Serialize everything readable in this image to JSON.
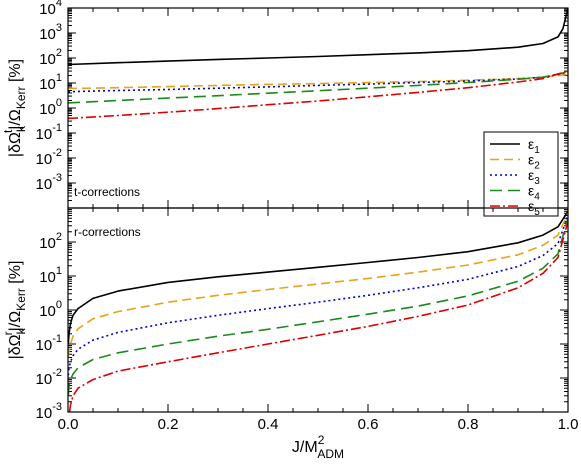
{
  "chart_data": [
    {
      "type": "line",
      "panel": "top",
      "annotation": "t-corrections",
      "ylabel_html": "|δΩ_k^t|/Ω_Kerr [%]",
      "ylabel": {
        "main": "|δΩ",
        "sub": "k",
        "sup": "t",
        "mid": "|/Ω",
        "sub2": "Kerr",
        "tail": " [%]"
      },
      "yscale": "log",
      "ylim": [
        0.0001,
        10000
      ],
      "xlim": [
        0,
        1
      ],
      "yticks": [
        {
          "v": 0.001,
          "base": "10",
          "exp": "-3"
        },
        {
          "v": 0.01,
          "base": "10",
          "exp": "-2"
        },
        {
          "v": 0.1,
          "base": "10",
          "exp": "-1"
        },
        {
          "v": 1,
          "base": "10",
          "exp": "0"
        },
        {
          "v": 10,
          "base": "10",
          "exp": "1"
        },
        {
          "v": 100,
          "base": "10",
          "exp": "2"
        },
        {
          "v": 1000,
          "base": "10",
          "exp": "3"
        },
        {
          "v": 10000,
          "base": "10",
          "exp": "4"
        }
      ],
      "series": [
        {
          "name": "ε1",
          "color": "#000000",
          "dash": "",
          "x": [
            0,
            0.1,
            0.2,
            0.3,
            0.4,
            0.5,
            0.6,
            0.7,
            0.8,
            0.9,
            0.95,
            0.98,
            0.99,
            1.0
          ],
          "y": [
            55,
            65,
            75,
            88,
            100,
            115,
            135,
            160,
            195,
            270,
            380,
            700,
            1500,
            10000
          ]
        },
        {
          "name": "ε2",
          "color": "#e8a317",
          "dash": "9,5",
          "x": [
            0,
            0.1,
            0.2,
            0.3,
            0.4,
            0.5,
            0.6,
            0.7,
            0.8,
            0.9,
            0.95,
            1.0
          ],
          "y": [
            6,
            6.5,
            7.2,
            8,
            8.8,
            9.5,
            10.5,
            11.5,
            13,
            15,
            17,
            22
          ]
        },
        {
          "name": "ε3",
          "color": "#0000cc",
          "dash": "2,3",
          "x": [
            0,
            0.1,
            0.2,
            0.3,
            0.4,
            0.5,
            0.6,
            0.7,
            0.8,
            0.9,
            0.95,
            1.0
          ],
          "y": [
            4.5,
            5,
            5.5,
            6.2,
            7,
            8,
            9,
            10.5,
            12,
            14.5,
            17,
            26
          ]
        },
        {
          "name": "ε4",
          "color": "#1a8a1a",
          "dash": "12,6",
          "x": [
            0,
            0.1,
            0.2,
            0.3,
            0.4,
            0.5,
            0.6,
            0.7,
            0.8,
            0.9,
            0.95,
            1.0
          ],
          "y": [
            1.6,
            2,
            2.5,
            3.1,
            3.9,
            4.9,
            6.2,
            8,
            10.5,
            14,
            17,
            28
          ]
        },
        {
          "name": "ε5",
          "color": "#dd0000",
          "dash": "10,3,2,3",
          "x": [
            0,
            0.1,
            0.2,
            0.3,
            0.4,
            0.5,
            0.6,
            0.7,
            0.8,
            0.9,
            0.95,
            1.0
          ],
          "y": [
            0.38,
            0.5,
            0.68,
            0.95,
            1.35,
            1.9,
            2.8,
            4.2,
            6.5,
            11,
            15,
            30
          ]
        }
      ],
      "legend": {
        "placement": "right",
        "entries": [
          {
            "base": "ε",
            "sub": "1"
          },
          {
            "base": "ε",
            "sub": "2"
          },
          {
            "base": "ε",
            "sub": "3"
          },
          {
            "base": "ε",
            "sub": "4"
          },
          {
            "base": "ε",
            "sub": "5"
          }
        ]
      }
    },
    {
      "type": "line",
      "panel": "bottom",
      "annotation": "r-corrections",
      "ylabel": {
        "main": "|δΩ",
        "sub": "k",
        "sup": "r",
        "mid": "|/Ω",
        "sub2": "Kerr",
        "tail": " [%]"
      },
      "xlabel": {
        "main": "J/M",
        "sup": "2",
        "sub": "ADM"
      },
      "yscale": "log",
      "ylim": [
        0.001,
        1000
      ],
      "xlim": [
        0,
        1
      ],
      "xticks": [
        "0.0",
        "0.2",
        "0.4",
        "0.6",
        "0.8",
        "1.0"
      ],
      "xtick_values": [
        0,
        0.2,
        0.4,
        0.6,
        0.8,
        1.0
      ],
      "yticks": [
        {
          "v": 0.001,
          "base": "10",
          "exp": "-3"
        },
        {
          "v": 0.01,
          "base": "10",
          "exp": "-2"
        },
        {
          "v": 0.1,
          "base": "10",
          "exp": "-1"
        },
        {
          "v": 1,
          "base": "10",
          "exp": "0"
        },
        {
          "v": 10,
          "base": "10",
          "exp": "1"
        },
        {
          "v": 100,
          "base": "10",
          "exp": "2"
        }
      ],
      "series": [
        {
          "name": "ε1",
          "color": "#000000",
          "dash": "",
          "x": [
            0.0005,
            0.002,
            0.005,
            0.01,
            0.02,
            0.05,
            0.1,
            0.2,
            0.3,
            0.4,
            0.5,
            0.6,
            0.7,
            0.8,
            0.9,
            0.95,
            0.98,
            1.0
          ],
          "y": [
            0.1,
            0.2,
            0.4,
            0.7,
            1.1,
            2.2,
            3.6,
            6.5,
            9.5,
            13,
            18,
            25,
            35,
            52,
            95,
            160,
            280,
            800
          ]
        },
        {
          "name": "ε2",
          "color": "#e8a317",
          "dash": "9,5",
          "x": [
            0.0005,
            0.002,
            0.005,
            0.01,
            0.02,
            0.05,
            0.1,
            0.2,
            0.3,
            0.4,
            0.5,
            0.6,
            0.7,
            0.8,
            0.9,
            0.95,
            0.98,
            1.0
          ],
          "y": [
            0.04,
            0.06,
            0.1,
            0.17,
            0.28,
            0.55,
            0.9,
            1.7,
            2.7,
            4,
            5.8,
            8.5,
            13,
            21,
            42,
            80,
            160,
            700
          ]
        },
        {
          "name": "ε3",
          "color": "#0000cc",
          "dash": "2,3",
          "x": [
            0.0005,
            0.002,
            0.005,
            0.01,
            0.02,
            0.05,
            0.1,
            0.2,
            0.3,
            0.4,
            0.5,
            0.6,
            0.7,
            0.8,
            0.9,
            0.95,
            0.98,
            1.0
          ],
          "y": [
            0.012,
            0.02,
            0.03,
            0.045,
            0.07,
            0.13,
            0.22,
            0.42,
            0.7,
            1.1,
            1.7,
            2.7,
            4.5,
            8,
            19,
            40,
            90,
            600
          ]
        },
        {
          "name": "ε4",
          "color": "#1a8a1a",
          "dash": "12,6",
          "x": [
            0.0005,
            0.002,
            0.005,
            0.01,
            0.02,
            0.05,
            0.1,
            0.2,
            0.3,
            0.4,
            0.5,
            0.6,
            0.7,
            0.8,
            0.9,
            0.95,
            0.98,
            1.0
          ],
          "y": [
            0.003,
            0.006,
            0.009,
            0.013,
            0.02,
            0.035,
            0.055,
            0.1,
            0.17,
            0.27,
            0.45,
            0.75,
            1.3,
            2.6,
            7,
            17,
            45,
            500
          ]
        },
        {
          "name": "ε5",
          "color": "#dd0000",
          "dash": "10,3,2,3",
          "x": [
            0.003,
            0.005,
            0.01,
            0.02,
            0.05,
            0.1,
            0.2,
            0.3,
            0.4,
            0.5,
            0.6,
            0.7,
            0.8,
            0.9,
            0.95,
            0.98,
            1.0
          ],
          "y": [
            0.001,
            0.0016,
            0.003,
            0.005,
            0.009,
            0.016,
            0.03,
            0.055,
            0.1,
            0.18,
            0.33,
            0.65,
            1.4,
            4.5,
            12,
            35,
            400
          ]
        }
      ]
    }
  ]
}
